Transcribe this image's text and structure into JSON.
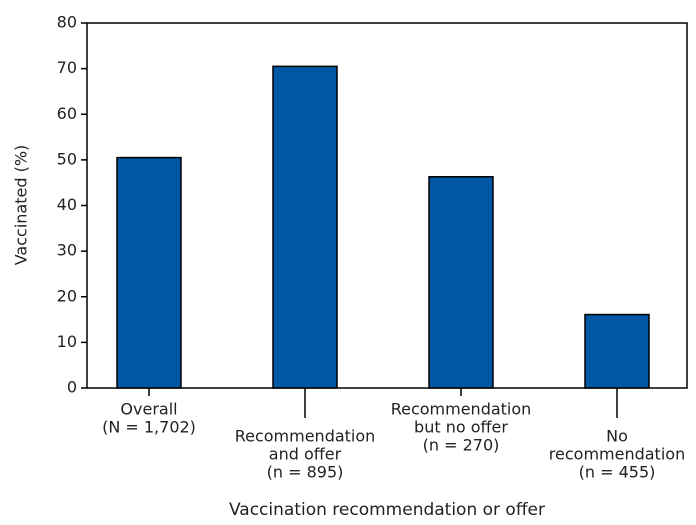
{
  "chart_data": {
    "type": "bar",
    "x_label": "Vaccination recommendation or offer",
    "y_label": "Vaccinated (%)",
    "categories": [
      [
        "Overall",
        "(N = 1,702)"
      ],
      [
        "Recommendation",
        "and offer",
        "(n = 895)"
      ],
      [
        "Recommendation",
        "but no offer",
        "(n = 270)"
      ],
      [
        "No",
        "recommendation",
        "(n = 455)"
      ]
    ],
    "values": [
      50.5,
      70.5,
      46.3,
      16.1
    ],
    "color": "#0058a5",
    "ylim": [
      0,
      80
    ],
    "yticks": [
      0,
      10,
      20,
      30,
      40,
      50,
      60,
      70,
      80
    ]
  }
}
